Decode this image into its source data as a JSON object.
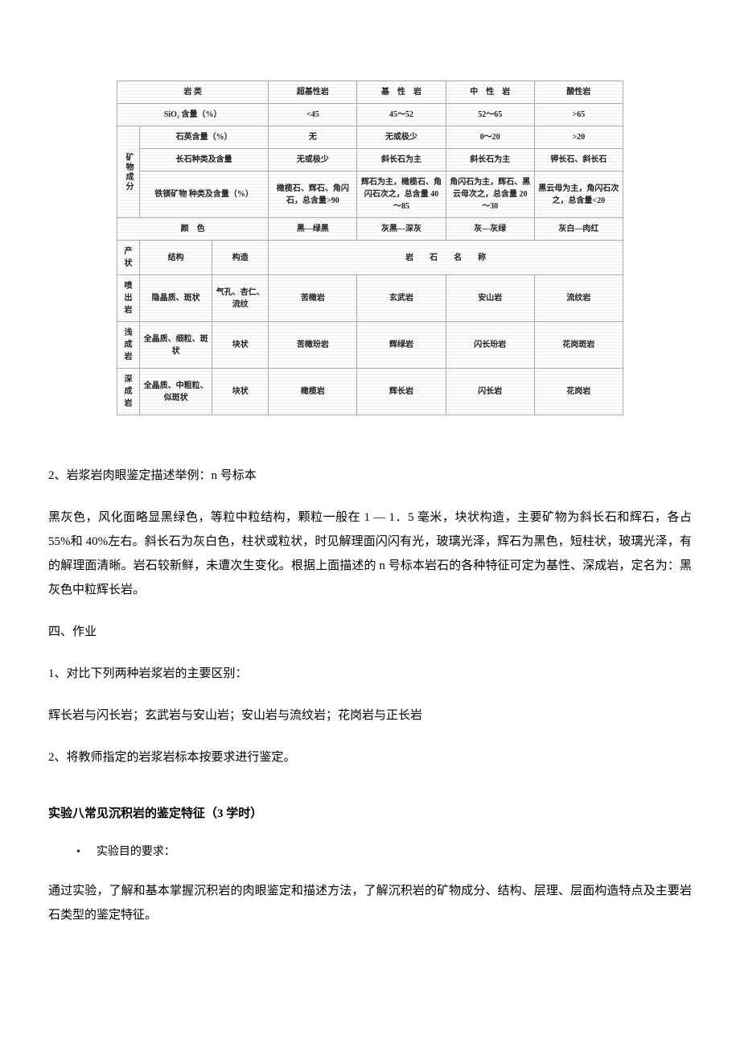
{
  "table": {
    "r1": {
      "a": "岩 类",
      "b": "超基性岩",
      "c": "基　性　岩",
      "d": "中　性　岩",
      "e": "酸性岩"
    },
    "r2": {
      "a": "SiO₂ 含量（%）",
      "b": "<45",
      "c": "45～52",
      "d": "52～65",
      "e": ">65"
    },
    "vert": "矿物成分",
    "r3": {
      "a": "石英含量（%）",
      "b": "无",
      "c": "无或极少",
      "d": "0～20",
      "e": ">20"
    },
    "r4": {
      "a": "长石种类及含量",
      "b": "无或极少",
      "c": "斜长石为主",
      "d": "斜长石为主",
      "e": "钾长石、斜长石"
    },
    "r5": {
      "a": "铁镁矿物\n种类及含量（%）",
      "b": "橄榄石、辉石、角闪石，总含量>90",
      "c": "辉石为主，橄榄石、角闪石次之，总含量 40～85",
      "d": "角闪石为主，辉石、黑云母次之，总含量 20～30",
      "e": "黑云母为主，角闪石次之，总含量<20"
    },
    "r6": {
      "a": "颜　色",
      "b": "黑—绿黑",
      "c": "灰黑—深灰",
      "d": "灰—灰绿",
      "e": "灰白—肉红"
    },
    "r7": {
      "a": "产状",
      "b": "结构",
      "c": "构造",
      "d": "岩　　石　　名　　称"
    },
    "r8": {
      "a": "喷出岩",
      "b": "隐晶质、斑状",
      "c": "气孔、杏仁、流纹",
      "d": "苦橄岩",
      "e": "玄武岩",
      "f": "安山岩",
      "g": "流纹岩"
    },
    "r9": {
      "a": "浅成岩",
      "b": "全晶质、细粒、斑状",
      "c": "块状",
      "d": "苦橄玢岩",
      "e": "辉绿岩",
      "f": "闪长玢岩",
      "g": "花岗斑岩"
    },
    "r10": {
      "a": "深成岩",
      "b": "全晶质、中粗粒、似斑状",
      "c": "块状",
      "d": "橄榄岩",
      "e": "辉长岩",
      "f": "闪长岩",
      "g": "花岗岩"
    }
  },
  "body": {
    "p1": "2、岩浆岩肉眼鉴定描述举例：n 号标本",
    "p2": "黑灰色，风化面略显黑绿色，等粒中粒结构，颗粒一般在 1 — 1．5 毫米，块状构造，主要矿物为斜长石和辉石，各占 55%和 40%左右。斜长石为灰白色，柱状或粒状，时见解理面闪闪有光，玻璃光泽，辉石为黑色，短柱状，玻璃光泽，有的解理面清晰。岩石较新鲜，未遭次生变化。根据上面描述的 n 号标本岩石的各种特征可定为基性、深成岩，定名为：黑灰色中粒辉长岩。",
    "p3": "四、作业",
    "p4": "1、对比下列两种岩浆岩的主要区别：",
    "p5": "辉长岩与闪长岩；玄武岩与安山岩；安山岩与流纹岩；花岗岩与正长岩",
    "p6": "2、将教师指定的岩浆岩标本按要求进行鉴定。",
    "h1": "实验八常见沉积岩的鉴定特征（3 学时）",
    "bullet": "实验目的要求：",
    "p7": "通过实验，了解和基本掌握沉积岩的肉眼鉴定和描述方法，了解沉积岩的矿物成分、结构、层理、层面构造特点及主要岩石类型的鉴定特征。"
  }
}
